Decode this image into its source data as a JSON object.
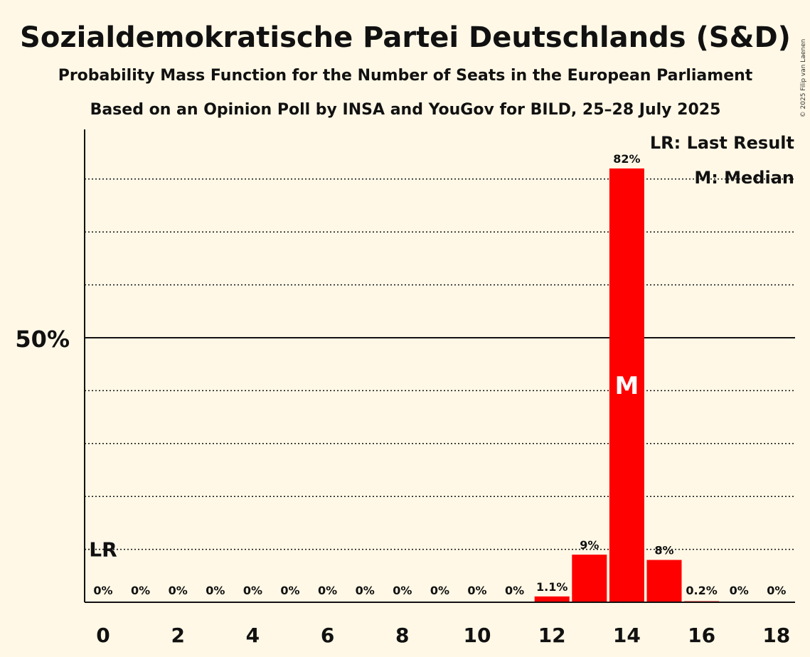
{
  "chart_data": {
    "type": "bar",
    "title": "Sozialdemokratische Partei Deutschlands (S&D)",
    "subtitle": "Probability Mass Function for the Number of Seats in the European Parliament",
    "subtitle2": "Based on an Opinion Poll by INSA and YouGov for BILD, 25–28 July 2025",
    "copyright": "© 2025 Filip van Laenen",
    "legend": {
      "lr": "LR: Last Result",
      "median": "M: Median",
      "placement": "top-right"
    },
    "categories": [
      0,
      1,
      2,
      3,
      4,
      5,
      6,
      7,
      8,
      9,
      10,
      11,
      12,
      13,
      14,
      15,
      16,
      17,
      18
    ],
    "values": [
      0,
      0,
      0,
      0,
      0,
      0,
      0,
      0,
      0,
      0,
      0,
      0,
      1.1,
      9,
      82,
      8,
      0.2,
      0,
      0
    ],
    "value_labels": [
      "0%",
      "0%",
      "0%",
      "0%",
      "0%",
      "0%",
      "0%",
      "0%",
      "0%",
      "0%",
      "0%",
      "0%",
      "1.1%",
      "9%",
      "82%",
      "8%",
      "0.2%",
      "0%",
      "0%"
    ],
    "x_tick_labels": [
      "0",
      "2",
      "4",
      "6",
      "8",
      "10",
      "12",
      "14",
      "16",
      "18"
    ],
    "x_tick_values": [
      0,
      2,
      4,
      6,
      8,
      10,
      12,
      14,
      16,
      18
    ],
    "y_tick_label": "50%",
    "y_tick_value": 50,
    "ylim": [
      0,
      90
    ],
    "grid_dotted_values": [
      10,
      20,
      30,
      40,
      60,
      70,
      80
    ],
    "last_result": {
      "seat": 0,
      "label": "LR",
      "level": 10
    },
    "median": {
      "seat": 14,
      "label": "M"
    },
    "bar_color": "#ff0000",
    "background": "#fff8e6"
  }
}
